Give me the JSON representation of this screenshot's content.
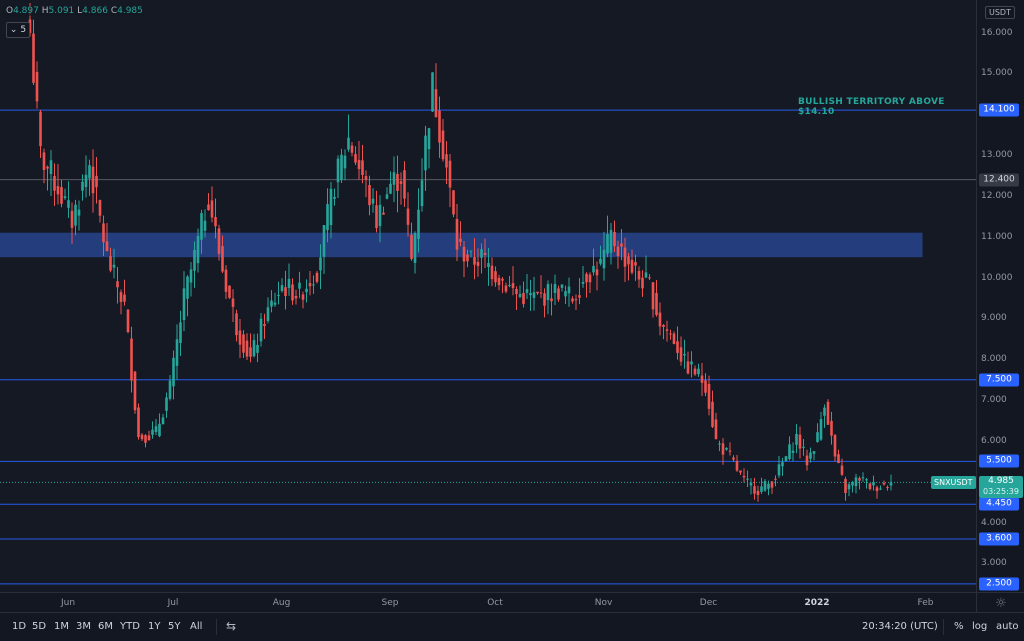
{
  "symbol": "SNXUSDT",
  "currency_label": "USDT",
  "legend": {
    "open_label": "O",
    "open": "4.897",
    "high_label": "H",
    "high": "5.091",
    "low_label": "L",
    "low": "4.866",
    "close_label": "C",
    "close": "4.985",
    "toggle_label": "5"
  },
  "last_price": {
    "value": "4.985",
    "countdown": "03:25:39",
    "ticker": "SNXUSDT"
  },
  "annotation": {
    "text": "BULLISH TERRITORY ABOVE $14.10"
  },
  "level_badges": [
    {
      "label": "14.100",
      "value": 14.1,
      "style": "blue"
    },
    {
      "label": "12.400",
      "value": 12.4,
      "style": "gray"
    },
    {
      "label": "7.500",
      "value": 7.5,
      "style": "blue"
    },
    {
      "label": "5.500",
      "value": 5.5,
      "style": "blue"
    },
    {
      "label": "4.450",
      "value": 4.45,
      "style": "blue"
    },
    {
      "label": "3.600",
      "value": 3.6,
      "style": "blue"
    },
    {
      "label": "2.500",
      "value": 2.5,
      "style": "blue"
    }
  ],
  "price_ticks": [
    {
      "label": "16.000",
      "value": 16
    },
    {
      "label": "15.000",
      "value": 15
    },
    {
      "label": "14.000",
      "value": 14
    },
    {
      "label": "13.000",
      "value": 13
    },
    {
      "label": "12.000",
      "value": 12
    },
    {
      "label": "11.000",
      "value": 11
    },
    {
      "label": "10.000",
      "value": 10
    },
    {
      "label": "9.000",
      "value": 9
    },
    {
      "label": "8.000",
      "value": 8
    },
    {
      "label": "7.000",
      "value": 7
    },
    {
      "label": "6.000",
      "value": 6
    },
    {
      "label": "5.000",
      "value": 5
    },
    {
      "label": "4.000",
      "value": 4
    },
    {
      "label": "3.000",
      "value": 3
    }
  ],
  "time_axis": {
    "months": [
      {
        "label": "Jun",
        "day": 0,
        "bold": false
      },
      {
        "label": "Jul",
        "day": 30,
        "bold": false
      },
      {
        "label": "Aug",
        "day": 61,
        "bold": false
      },
      {
        "label": "Sep",
        "day": 92,
        "bold": false
      },
      {
        "label": "Oct",
        "day": 122,
        "bold": false
      },
      {
        "label": "Nov",
        "day": 153,
        "bold": false
      },
      {
        "label": "Dec",
        "day": 183,
        "bold": false
      },
      {
        "label": "2022",
        "day": 214,
        "bold": true
      },
      {
        "label": "Feb",
        "day": 245,
        "bold": false
      }
    ]
  },
  "bottom_bar": {
    "ranges": [
      "1D",
      "5D",
      "1M",
      "3M",
      "6M",
      "YTD",
      "1Y",
      "5Y",
      "All"
    ],
    "clock": "20:34:20 (UTC)",
    "percent_label": "%",
    "log_label": "log",
    "auto_label": "auto"
  },
  "colors": {
    "up": "#26a69a",
    "down": "#ef5350",
    "zone": "#2a4a9a",
    "level_line": "#2962ff",
    "background": "#151924"
  },
  "chart_data": {
    "type": "candlestick",
    "symbol": "SNXUSDT",
    "interval": "1D",
    "ylim": [
      2.4,
      16.7
    ],
    "scale": "linear",
    "grid": false,
    "horizontal_levels": [
      14.1,
      12.4,
      7.5,
      5.5,
      4.45,
      3.6,
      2.5
    ],
    "zone": {
      "low": 10.5,
      "high": 11.1,
      "x_start": "2021-05-22",
      "x_end": "2022-02-01"
    },
    "x_start": "2021-05-22",
    "x_end": "2022-01-23",
    "anchors": [
      {
        "date": "2021-05-22",
        "close": 16.0
      },
      {
        "date": "2021-05-25",
        "close": 13.0
      },
      {
        "date": "2021-05-30",
        "close": 12.2
      },
      {
        "date": "2021-06-03",
        "close": 11.4
      },
      {
        "date": "2021-06-08",
        "close": 12.8
      },
      {
        "date": "2021-06-13",
        "close": 10.5
      },
      {
        "date": "2021-06-18",
        "close": 9.3
      },
      {
        "date": "2021-06-22",
        "close": 6.1
      },
      {
        "date": "2021-06-27",
        "close": 6.2
      },
      {
        "date": "2021-07-01",
        "close": 7.3
      },
      {
        "date": "2021-07-05",
        "close": 9.5
      },
      {
        "date": "2021-07-08",
        "close": 10.5
      },
      {
        "date": "2021-07-12",
        "close": 12.0
      },
      {
        "date": "2021-07-16",
        "close": 10.2
      },
      {
        "date": "2021-07-20",
        "close": 8.8
      },
      {
        "date": "2021-07-24",
        "close": 8.0
      },
      {
        "date": "2021-07-28",
        "close": 9.0
      },
      {
        "date": "2021-08-02",
        "close": 9.8
      },
      {
        "date": "2021-08-07",
        "close": 9.6
      },
      {
        "date": "2021-08-12",
        "close": 10.2
      },
      {
        "date": "2021-08-17",
        "close": 12.3
      },
      {
        "date": "2021-08-21",
        "close": 13.4
      },
      {
        "date": "2021-08-25",
        "close": 12.5
      },
      {
        "date": "2021-08-29",
        "close": 11.4
      },
      {
        "date": "2021-09-02",
        "close": 12.3
      },
      {
        "date": "2021-09-05",
        "close": 12.5
      },
      {
        "date": "2021-09-08",
        "close": 10.4
      },
      {
        "date": "2021-09-12",
        "close": 13.3
      },
      {
        "date": "2021-09-14",
        "close": 14.7
      },
      {
        "date": "2021-09-18",
        "close": 12.7
      },
      {
        "date": "2021-09-21",
        "close": 10.8
      },
      {
        "date": "2021-09-25",
        "close": 10.4
      },
      {
        "date": "2021-09-28",
        "close": 10.5
      },
      {
        "date": "2021-10-02",
        "close": 10.1
      },
      {
        "date": "2021-10-08",
        "close": 9.6
      },
      {
        "date": "2021-10-14",
        "close": 9.5
      },
      {
        "date": "2021-10-20",
        "close": 9.7
      },
      {
        "date": "2021-10-24",
        "close": 9.5
      },
      {
        "date": "2021-10-28",
        "close": 10.1
      },
      {
        "date": "2021-11-01",
        "close": 10.3
      },
      {
        "date": "2021-11-04",
        "close": 11.0
      },
      {
        "date": "2021-11-08",
        "close": 10.5
      },
      {
        "date": "2021-11-12",
        "close": 10.0
      },
      {
        "date": "2021-11-15",
        "close": 9.8
      },
      {
        "date": "2021-11-18",
        "close": 8.9
      },
      {
        "date": "2021-11-22",
        "close": 8.5
      },
      {
        "date": "2021-11-25",
        "close": 7.9
      },
      {
        "date": "2021-11-28",
        "close": 7.7
      },
      {
        "date": "2021-12-01",
        "close": 7.4
      },
      {
        "date": "2021-12-04",
        "close": 6.0
      },
      {
        "date": "2021-12-08",
        "close": 5.6
      },
      {
        "date": "2021-12-12",
        "close": 5.0
      },
      {
        "date": "2021-12-16",
        "close": 4.8
      },
      {
        "date": "2021-12-20",
        "close": 5.0
      },
      {
        "date": "2021-12-24",
        "close": 5.6
      },
      {
        "date": "2021-12-27",
        "close": 6.1
      },
      {
        "date": "2021-12-30",
        "close": 5.5
      },
      {
        "date": "2022-01-02",
        "close": 6.1
      },
      {
        "date": "2022-01-04",
        "close": 7.0
      },
      {
        "date": "2022-01-07",
        "close": 5.6
      },
      {
        "date": "2022-01-10",
        "close": 4.8
      },
      {
        "date": "2022-01-14",
        "close": 5.1
      },
      {
        "date": "2022-01-17",
        "close": 4.9
      },
      {
        "date": "2022-01-20",
        "close": 4.9
      },
      {
        "date": "2022-01-23",
        "close": 4.985
      }
    ]
  }
}
